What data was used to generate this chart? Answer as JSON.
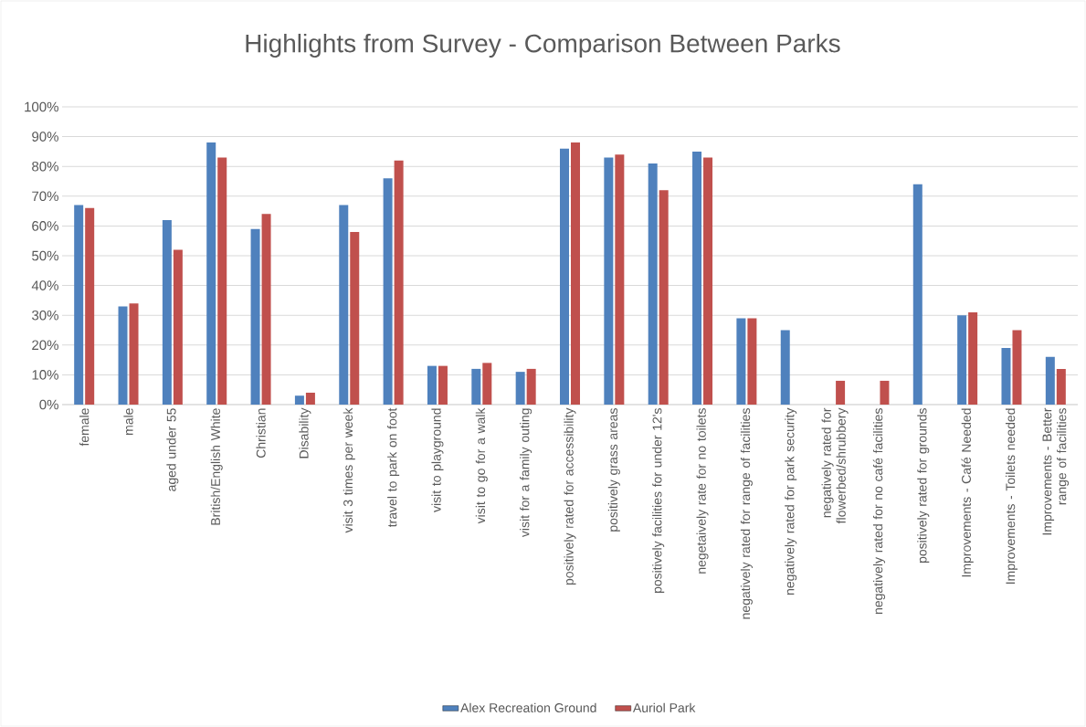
{
  "chart_data": {
    "type": "bar",
    "title": "Highlights from Survey - Comparison Between Parks",
    "categories": [
      "female",
      "male",
      "aged under 55",
      "British/English White",
      "Christian",
      "Disability",
      "visit 3 times per week",
      "travel to park on foot",
      "visit to playground",
      "visit to go for a walk",
      "visit for a family outing",
      "positively rated for accessibility",
      "positively grass areas",
      "positively facilities for under 12's",
      "negetaively rate for no toilets",
      "negatively rated for range of facilities",
      "negatively rated for park security",
      "negatively rated for flowerbed/shrubbery",
      "negatively rated for no café facilities",
      "positively rated for grounds",
      "Improvements - Café Needed",
      "Improvements - Toilets needed",
      "Improvements - Better range of facilities"
    ],
    "series": [
      {
        "name": "Alex Recreation Ground",
        "color": "#4f81bd",
        "values": [
          67,
          33,
          62,
          88,
          59,
          3,
          67,
          76,
          13,
          12,
          11,
          86,
          83,
          81,
          85,
          29,
          25,
          null,
          null,
          74,
          30,
          19,
          16
        ]
      },
      {
        "name": "Auriol Park",
        "color": "#c0504d",
        "values": [
          66,
          34,
          52,
          83,
          64,
          4,
          58,
          82,
          13,
          14,
          12,
          88,
          84,
          72,
          83,
          29,
          null,
          8,
          8,
          null,
          31,
          25,
          12
        ]
      }
    ],
    "ylim": [
      0,
      100
    ],
    "yticks": [
      {
        "value": 0,
        "label": "0%"
      },
      {
        "value": 10,
        "label": "10%"
      },
      {
        "value": 20,
        "label": "20%"
      },
      {
        "value": 30,
        "label": "30%"
      },
      {
        "value": 40,
        "label": "40%"
      },
      {
        "value": 50,
        "label": "50%"
      },
      {
        "value": 60,
        "label": "60%"
      },
      {
        "value": 70,
        "label": "70%"
      },
      {
        "value": 80,
        "label": "80%"
      },
      {
        "value": 90,
        "label": "90%"
      },
      {
        "value": 100,
        "label": "100%"
      }
    ],
    "grid": "y",
    "legend": "bottom"
  }
}
